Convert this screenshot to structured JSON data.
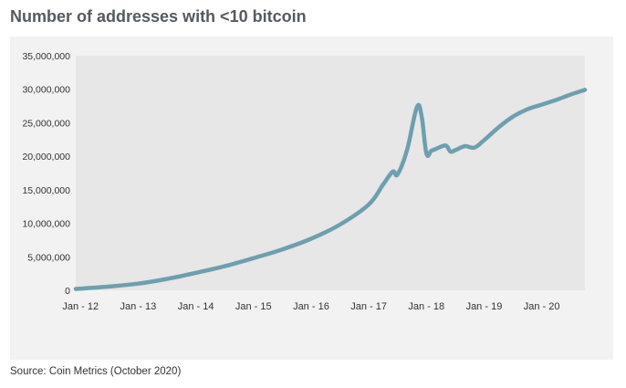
{
  "header": {
    "title": "Number of addresses with <10 bitcoin"
  },
  "footer": {
    "source": "Source: Coin Metrics (October 2020)"
  },
  "colors": {
    "line": "#6e9fae",
    "plot_background": "#e6e7e6",
    "panel_background": "#f2f2f2",
    "title": "#555a60"
  },
  "chart_data": {
    "type": "line",
    "title": "Number of addresses with <10 bitcoin",
    "xlabel": "",
    "ylabel": "",
    "grid": false,
    "legend": "none",
    "x_tick_labels": [
      "Jan - 12",
      "Jan - 13",
      "Jan - 14",
      "Jan - 15",
      "Jan - 16",
      "Jan - 17",
      "Jan - 18",
      "Jan - 19",
      "Jan - 20"
    ],
    "y_tick_labels": [
      "0",
      "5,000,000",
      "10,000,000",
      "15,000,000",
      "20,000,000",
      "25,000,000",
      "30,000,000",
      "35,000,000"
    ],
    "ylim": [
      0,
      35000000
    ],
    "xlim": [
      "2011-12",
      "2020-10"
    ],
    "series": [
      {
        "x": [
          "2011-12",
          "2012-06",
          "2013-01",
          "2013-07",
          "2014-01",
          "2014-07",
          "2015-01",
          "2015-07",
          "2016-01",
          "2016-07",
          "2017-01",
          "2017-04",
          "2017-06",
          "2017-07",
          "2017-09",
          "2017-11",
          "2017-12",
          "2018-01",
          "2018-02",
          "2018-03",
          "2018-05",
          "2018-06",
          "2018-07",
          "2018-09",
          "2018-11",
          "2019-01",
          "2019-04",
          "2019-07",
          "2019-10",
          "2020-01",
          "2020-04",
          "2020-07",
          "2020-10"
        ],
        "values": [
          200000,
          500000,
          1000000,
          1700000,
          2600000,
          3600000,
          4800000,
          6100000,
          7700000,
          9800000,
          12800000,
          15800000,
          17700000,
          17300000,
          21000000,
          27300000,
          26000000,
          20400000,
          20800000,
          21100000,
          21600000,
          20700000,
          20900000,
          21500000,
          21300000,
          22400000,
          24300000,
          25900000,
          27000000,
          27700000,
          28400000,
          29200000,
          29900000
        ]
      }
    ]
  }
}
